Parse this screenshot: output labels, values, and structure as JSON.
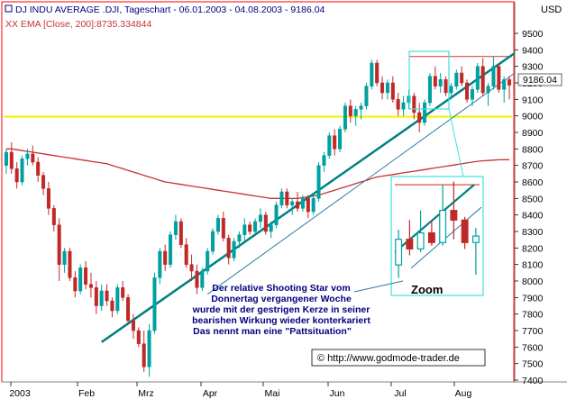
{
  "chart_data": {
    "type": "candlestick",
    "title": "DJ INDU AVERAGE .DJI, Tageschart - 06.01.2003 - 04.08.2003 - 9186.04",
    "indicator_label": "XX EMA [Close, 200]:8735.334844",
    "currency": "USD",
    "last_price": "9186.04",
    "yticks": [
      "9500",
      "9400",
      "9300",
      "9200",
      "9100",
      "9000",
      "8900",
      "8800",
      "8700",
      "8600",
      "8500",
      "8400",
      "8300",
      "8200",
      "8100",
      "8000",
      "7900",
      "7800",
      "7700",
      "7600",
      "7500",
      "7400"
    ],
    "xticks": [
      "2003",
      "Feb",
      "Mrz",
      "Apr",
      "Mai",
      "Jun",
      "Jul",
      "Aug"
    ],
    "ylim": [
      7400,
      9560
    ],
    "series": [
      {
        "name": "DJ INDU AVERAGE",
        "type": "candlestick",
        "ohlc": [
          [
            8700,
            8800,
            8650,
            8780
          ],
          [
            8780,
            8840,
            8650,
            8680
          ],
          [
            8680,
            8720,
            8560,
            8600
          ],
          [
            8600,
            8760,
            8580,
            8740
          ],
          [
            8740,
            8800,
            8700,
            8770
          ],
          [
            8770,
            8820,
            8700,
            8720
          ],
          [
            8720,
            8750,
            8600,
            8640
          ],
          [
            8640,
            8660,
            8520,
            8560
          ],
          [
            8560,
            8600,
            8400,
            8440
          ],
          [
            8440,
            8460,
            8300,
            8340
          ],
          [
            8340,
            8380,
            8000,
            8100
          ],
          [
            8100,
            8200,
            8050,
            8180
          ],
          [
            8180,
            8200,
            8000,
            8020
          ],
          [
            8020,
            8060,
            7900,
            7940
          ],
          [
            7940,
            8100,
            7920,
            8080
          ],
          [
            8080,
            8120,
            7950,
            7980
          ],
          [
            7980,
            8050,
            7900,
            7960
          ],
          [
            7960,
            8000,
            7800,
            7850
          ],
          [
            7850,
            7980,
            7820,
            7940
          ],
          [
            7940,
            7980,
            7850,
            7880
          ],
          [
            7880,
            7900,
            7780,
            7820
          ],
          [
            7820,
            7980,
            7800,
            7960
          ],
          [
            7960,
            8000,
            7880,
            7900
          ],
          [
            7900,
            7920,
            7740,
            7760
          ],
          [
            7760,
            7800,
            7650,
            7700
          ],
          [
            7700,
            7720,
            7600,
            7620
          ],
          [
            7620,
            7700,
            7450,
            7480
          ],
          [
            7480,
            7740,
            7420,
            7700
          ],
          [
            7700,
            8050,
            7680,
            8020
          ],
          [
            8020,
            8200,
            7980,
            8180
          ],
          [
            8180,
            8220,
            8060,
            8100
          ],
          [
            8100,
            8300,
            8080,
            8280
          ],
          [
            8280,
            8400,
            8250,
            8360
          ],
          [
            8360,
            8380,
            8200,
            8220
          ],
          [
            8220,
            8260,
            8080,
            8100
          ],
          [
            8100,
            8160,
            8000,
            8060
          ],
          [
            8060,
            8100,
            7920,
            7960
          ],
          [
            7960,
            8080,
            7940,
            8060
          ],
          [
            8060,
            8200,
            8040,
            8180
          ],
          [
            8180,
            8320,
            8160,
            8300
          ],
          [
            8300,
            8400,
            8280,
            8380
          ],
          [
            8380,
            8420,
            8240,
            8260
          ],
          [
            8260,
            8280,
            8100,
            8140
          ],
          [
            8140,
            8260,
            8120,
            8240
          ],
          [
            8240,
            8300,
            8200,
            8280
          ],
          [
            8280,
            8380,
            8240,
            8340
          ],
          [
            8340,
            8360,
            8280,
            8300
          ],
          [
            8300,
            8380,
            8280,
            8360
          ],
          [
            8360,
            8440,
            8320,
            8400
          ],
          [
            8400,
            8420,
            8280,
            8300
          ],
          [
            8300,
            8360,
            8260,
            8340
          ],
          [
            8340,
            8480,
            8320,
            8460
          ],
          [
            8460,
            8560,
            8440,
            8540
          ],
          [
            8540,
            8560,
            8440,
            8460
          ],
          [
            8460,
            8500,
            8400,
            8480
          ],
          [
            8480,
            8540,
            8420,
            8440
          ],
          [
            8440,
            8520,
            8420,
            8500
          ],
          [
            8500,
            8520,
            8380,
            8420
          ],
          [
            8420,
            8520,
            8400,
            8500
          ],
          [
            8500,
            8720,
            8480,
            8700
          ],
          [
            8700,
            8780,
            8660,
            8760
          ],
          [
            8760,
            8900,
            8740,
            8880
          ],
          [
            8880,
            8920,
            8760,
            8800
          ],
          [
            8800,
            8940,
            8780,
            8920
          ],
          [
            8920,
            9080,
            8900,
            9060
          ],
          [
            9060,
            9100,
            8960,
            9000
          ],
          [
            9000,
            9060,
            8940,
            9040
          ],
          [
            9040,
            9080,
            8980,
            9060
          ],
          [
            9060,
            9200,
            9040,
            9180
          ],
          [
            9180,
            9340,
            9160,
            9320
          ],
          [
            9320,
            9340,
            9180,
            9200
          ],
          [
            9200,
            9240,
            9100,
            9140
          ],
          [
            9140,
            9220,
            9100,
            9200
          ],
          [
            9200,
            9240,
            9080,
            9100
          ],
          [
            9100,
            9140,
            9000,
            9040
          ],
          [
            9040,
            9120,
            9000,
            9080
          ],
          [
            9080,
            9160,
            9040,
            9120
          ],
          [
            9120,
            9140,
            8980,
            9020
          ],
          [
            9020,
            9080,
            8900,
            8960
          ],
          [
            8960,
            9100,
            8940,
            9080
          ],
          [
            9080,
            9260,
            9060,
            9240
          ],
          [
            9240,
            9300,
            9160,
            9180
          ],
          [
            9180,
            9260,
            9140,
            9220
          ],
          [
            9220,
            9240,
            9120,
            9140
          ],
          [
            9140,
            9200,
            9100,
            9180
          ],
          [
            9180,
            9280,
            9160,
            9260
          ],
          [
            9260,
            9300,
            9180,
            9200
          ],
          [
            9200,
            9220,
            9080,
            9100
          ],
          [
            9100,
            9180,
            9060,
            9160
          ],
          [
            9160,
            9320,
            9140,
            9300
          ],
          [
            9300,
            9350,
            9120,
            9140
          ],
          [
            9140,
            9200,
            9060,
            9180
          ],
          [
            9180,
            9360,
            9160,
            9300
          ],
          [
            9300,
            9320,
            9140,
            9160
          ],
          [
            9160,
            9240,
            9080,
            9220
          ],
          [
            9220,
            9240,
            9100,
            9186
          ]
        ]
      },
      {
        "name": "EMA [Close, 200]",
        "type": "line",
        "values": [
          8800,
          8800,
          8795,
          8790,
          8785,
          8780,
          8775,
          8770,
          8765,
          8760,
          8755,
          8750,
          8745,
          8740,
          8735,
          8730,
          8725,
          8720,
          8715,
          8710,
          8700,
          8690,
          8680,
          8670,
          8660,
          8650,
          8640,
          8630,
          8620,
          8610,
          8600,
          8595,
          8590,
          8585,
          8580,
          8575,
          8570,
          8565,
          8560,
          8555,
          8550,
          8545,
          8540,
          8535,
          8530,
          8525,
          8520,
          8515,
          8510,
          8505,
          8500,
          8500,
          8500,
          8500,
          8500,
          8500,
          8505,
          8510,
          8515,
          8520,
          8530,
          8540,
          8550,
          8560,
          8570,
          8580,
          8590,
          8600,
          8610,
          8620,
          8630,
          8635,
          8640,
          8645,
          8650,
          8655,
          8660,
          8665,
          8670,
          8675,
          8680,
          8685,
          8690,
          8695,
          8700,
          8705,
          8710,
          8715,
          8720,
          8725,
          8728,
          8730,
          8732,
          8734,
          8735,
          8735
        ]
      }
    ],
    "hlines": [
      {
        "value": 9360,
        "x_from": 76,
        "x_to": 96,
        "color": "#e04a4a"
      },
      {
        "value": 8995,
        "x_from": 0,
        "x_to": 96,
        "color": "#f2f200"
      }
    ],
    "trendlines": [
      {
        "from": [
          18,
          7630
        ],
        "to": [
          96,
          9380
        ],
        "color": "#008080",
        "width": 2.5
      },
      {
        "from": [
          38,
          7920
        ],
        "to": [
          96,
          9260
        ],
        "color": "#2a7aa5",
        "width": 1
      }
    ],
    "zoom_box_label": "Zoom",
    "annotation_lines": [
      "Der relative Shooting Star vom",
      "Donnertag vergangener Woche",
      "wurde mit der gestrigen Kerze in seiner",
      "bearishen Wirkung wieder konterkariert",
      "Das nennt man eine \"Pattsituation\""
    ],
    "copyright": "© http://www.godmode-trader.de",
    "colors": {
      "up": "#00b0b0",
      "down": "#d03030",
      "ema": "#c83232",
      "horizontal_resistance": "#e04a4a",
      "horizontal_support": "#f2f200",
      "trend": "#008080",
      "zoom_box": "#40e0e0",
      "text": "#000080",
      "frame": "#ff0000"
    }
  }
}
